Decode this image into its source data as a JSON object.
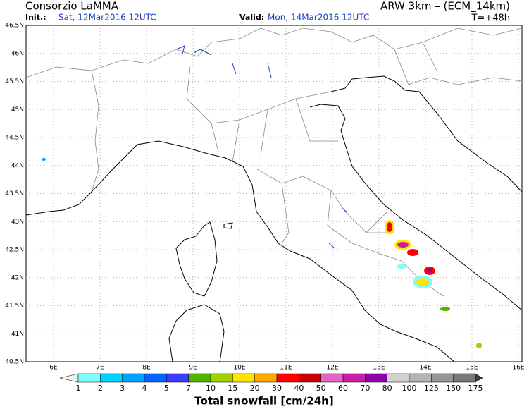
{
  "header": {
    "source": "Consorzio LaMMA",
    "init_label": "Init.:",
    "init_value": "Sat, 12Mar2016 12UTC",
    "model": "ARW 3km – (ECM_14km)",
    "valid_label": "Valid:",
    "valid_value": "Mon, 14Mar2016 12UTC",
    "lead_time": "T=+48h"
  },
  "map": {
    "lat_labels": [
      "46.5N",
      "46N",
      "45.5N",
      "45N",
      "44.5N",
      "44N",
      "43.5N",
      "43N",
      "42.5N",
      "42N",
      "41.5N",
      "41N",
      "40.5N"
    ],
    "lon_labels": [
      "6E",
      "7E",
      "8E",
      "9E",
      "10E",
      "11E",
      "12E",
      "13E",
      "14E",
      "15E",
      "16E"
    ]
  },
  "colorbar": {
    "labels": [
      "1",
      "2",
      "3",
      "4",
      "5",
      "7",
      "10",
      "15",
      "20",
      "30",
      "40",
      "50",
      "60",
      "70",
      "80",
      "100",
      "125",
      "150",
      "175"
    ],
    "colors": [
      "#80ffff",
      "#00d2ff",
      "#00a0ff",
      "#0064ff",
      "#3c3cff",
      "#50b400",
      "#a0d200",
      "#ffe600",
      "#ffaa00",
      "#ff0000",
      "#c80000",
      "#e664c8",
      "#c81eaa",
      "#8c00aa",
      "#d2d2d2",
      "#b4b4b4",
      "#969696",
      "#787878"
    ],
    "under_color": "#f0f0f0",
    "over_color": "#3c3c3c",
    "caption": "Total snowfall [cm/24h]"
  }
}
